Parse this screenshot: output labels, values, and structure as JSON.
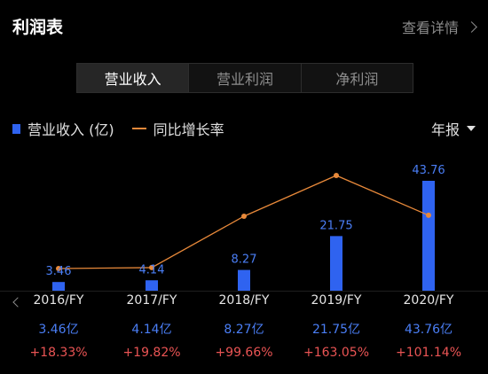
{
  "header": {
    "title": "利润表",
    "link_label": "查看详情"
  },
  "tabs": [
    {
      "label": "营业收入",
      "active": true
    },
    {
      "label": "营业利润",
      "active": false
    },
    {
      "label": "净利润",
      "active": false
    }
  ],
  "legend": {
    "bar_label": "营业收入 (亿)",
    "line_label": "同比增长率"
  },
  "period_selector": {
    "label": "年报"
  },
  "colors": {
    "bar": "#2f63f0",
    "line": "#e8893a",
    "revenue_text": "#4a7ef5",
    "growth_text": "#ea5454"
  },
  "chart_data": {
    "type": "bar",
    "categories": [
      "2016/FY",
      "2017/FY",
      "2018/FY",
      "2019/FY",
      "2020/FY"
    ],
    "series": [
      {
        "name": "营业收入 (亿)",
        "type": "bar",
        "values": [
          3.46,
          4.14,
          8.27,
          21.75,
          43.76
        ],
        "labels": [
          "3.46",
          "4.14",
          "8.27",
          "21.75",
          "43.76"
        ]
      },
      {
        "name": "同比增长率",
        "type": "line",
        "values": [
          18.33,
          19.82,
          99.66,
          163.05,
          101.14
        ]
      }
    ]
  },
  "table": {
    "years": [
      "2016/FY",
      "2017/FY",
      "2018/FY",
      "2019/FY",
      "2020/FY"
    ],
    "revenue": [
      "3.46亿",
      "4.14亿",
      "8.27亿",
      "21.75亿",
      "43.76亿"
    ],
    "growth": [
      "+18.33%",
      "+19.82%",
      "+99.66%",
      "+163.05%",
      "+101.14%"
    ]
  }
}
